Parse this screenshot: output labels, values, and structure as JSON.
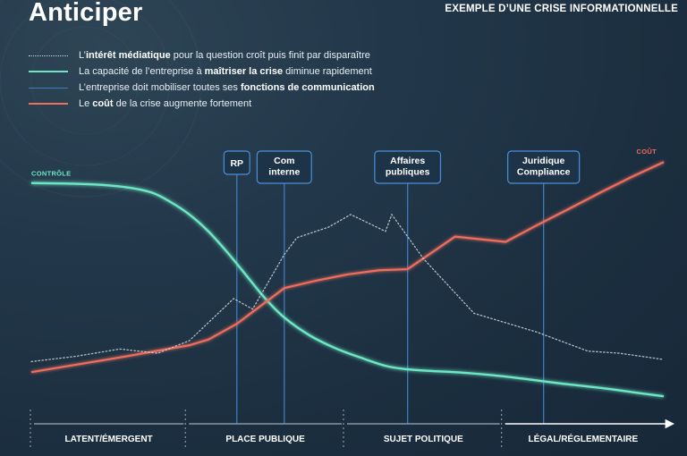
{
  "header": {
    "title": "Anticiper",
    "subtitle": "EXEMPLE D’UNE CRISE INFORMATIONNELLE"
  },
  "legend": [
    {
      "series": "media",
      "color": "#cfd6dc",
      "dash": "dotted",
      "parts": [
        "L’",
        "intérêt médiatique",
        " pour la question croît puis finit par disparaître"
      ]
    },
    {
      "series": "control",
      "color": "#6de7c3",
      "dash": "solid",
      "parts": [
        "La capacité de l’entreprise à ",
        "maîtriser la crise",
        " diminue rapidement"
      ]
    },
    {
      "series": "communication",
      "color": "#3f7bbd",
      "dash": "solid",
      "parts": [
        "L’entreprise doit mobiliser toutes ses ",
        "fonctions de communication",
        ""
      ]
    },
    {
      "series": "cost",
      "color": "#ef6d5c",
      "dash": "solid",
      "parts": [
        "Le ",
        "coût",
        " de la crise augmente fortement"
      ]
    }
  ],
  "chart_data": {
    "type": "line",
    "xlim": [
      0,
      100
    ],
    "ylim": [
      0,
      100
    ],
    "phases": [
      {
        "label": "LATENT/ÉMERGENT",
        "start": 0,
        "end": 24.5
      },
      {
        "label": "PLACE PUBLIQUE",
        "start": 24.5,
        "end": 49.5
      },
      {
        "label": "SUJET POLITIQUE",
        "start": 49.5,
        "end": 74.5
      },
      {
        "label": "LÉGAL/RÉGLEMENTAIRE",
        "start": 74.5,
        "end": 100
      }
    ],
    "functions": [
      {
        "label": "RP",
        "x": 32.5
      },
      {
        "label": "Com\ninterne",
        "x": 40
      },
      {
        "label": "Affaires\npubliques",
        "x": 59.5
      },
      {
        "label": "Juridique\nCompliance",
        "x": 81
      }
    ],
    "series": [
      {
        "id": "control",
        "label": "CONTRÔLE",
        "color": "#6de7c3",
        "x": [
          0,
          5,
          10,
          15,
          19,
          22,
          25,
          28,
          31,
          34,
          37,
          40,
          44,
          48,
          52,
          56,
          59,
          63,
          68,
          73,
          78,
          84,
          90,
          95,
          100
        ],
        "y": [
          98,
          97.8,
          97.3,
          96,
          93.5,
          89,
          83,
          75,
          65,
          54,
          43,
          34,
          25.5,
          19.5,
          15,
          11,
          9.5,
          8.6,
          7.8,
          6.5,
          4.8,
          2.5,
          0.5,
          -1.5,
          -3.5
        ]
      },
      {
        "id": "cost",
        "label": "COÛT",
        "color": "#ef6d5c",
        "x": [
          0,
          5,
          10,
          15,
          20,
          25,
          28,
          32.5,
          40,
          45,
          50,
          55,
          59.5,
          67,
          75,
          80,
          85,
          90,
          95,
          100
        ],
        "y": [
          8,
          10.5,
          13,
          15.5,
          18.2,
          20.8,
          23.5,
          31,
          48,
          51.5,
          54.5,
          56.5,
          57,
          72.5,
          70,
          78,
          85.7,
          93.5,
          101,
          108
        ]
      },
      {
        "id": "media",
        "label": "",
        "color": "#cfd6dc",
        "x": [
          0,
          7,
          14,
          20,
          25,
          32,
          35,
          40,
          42,
          47,
          50.5,
          56,
          57,
          62,
          70,
          80,
          88,
          93,
          100
        ],
        "y": [
          13,
          15.5,
          19,
          17,
          23,
          43,
          38,
          64,
          72,
          77,
          83,
          75,
          83,
          62,
          36,
          27,
          18,
          17,
          14
        ]
      }
    ]
  }
}
